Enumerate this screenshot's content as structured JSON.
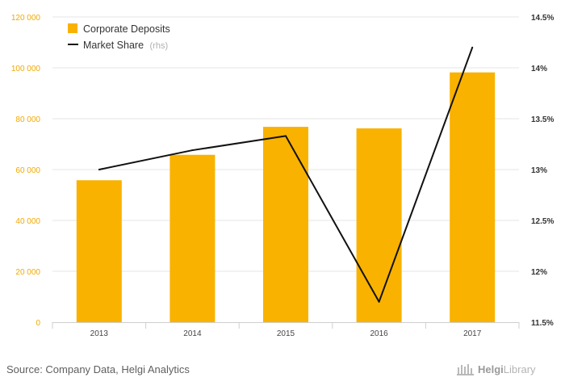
{
  "chart_data": {
    "type": "bar+line",
    "categories": [
      "2013",
      "2014",
      "2015",
      "2016",
      "2017"
    ],
    "series": [
      {
        "name": "Corporate Deposits",
        "type": "bar",
        "axis": "left",
        "values": [
          55800,
          65800,
          76800,
          76200,
          98200
        ]
      },
      {
        "name": "Market Share",
        "name_suffix": "(rhs)",
        "type": "line",
        "axis": "right",
        "values": [
          13.0,
          13.19,
          13.33,
          11.7,
          14.2
        ]
      }
    ],
    "y_left": {
      "ylim": [
        0,
        120000
      ],
      "ticks": [
        "0",
        "20 000",
        "40 000",
        "60 000",
        "80 000",
        "100 000",
        "120 000"
      ],
      "tick_values": [
        0,
        20000,
        40000,
        60000,
        80000,
        100000,
        120000
      ]
    },
    "y_right": {
      "ylim": [
        11.5,
        14.5
      ],
      "ticks": [
        "11.5%",
        "12%",
        "12.5%",
        "13%",
        "13.5%",
        "14%",
        "14.5%"
      ],
      "tick_values": [
        11.5,
        12,
        12.5,
        13,
        13.5,
        14,
        14.5
      ]
    },
    "grid": true,
    "legend": "top-left"
  },
  "colors": {
    "bar": "#f9b200",
    "line": "#111111",
    "left_axis_text": "#f2a900",
    "right_axis_text": "#333333",
    "grid": "#e6e6e6"
  },
  "footer": {
    "source": "Source: Company Data, Helgi Analytics",
    "logo_main": "Helgi",
    "logo_second": "Library"
  }
}
